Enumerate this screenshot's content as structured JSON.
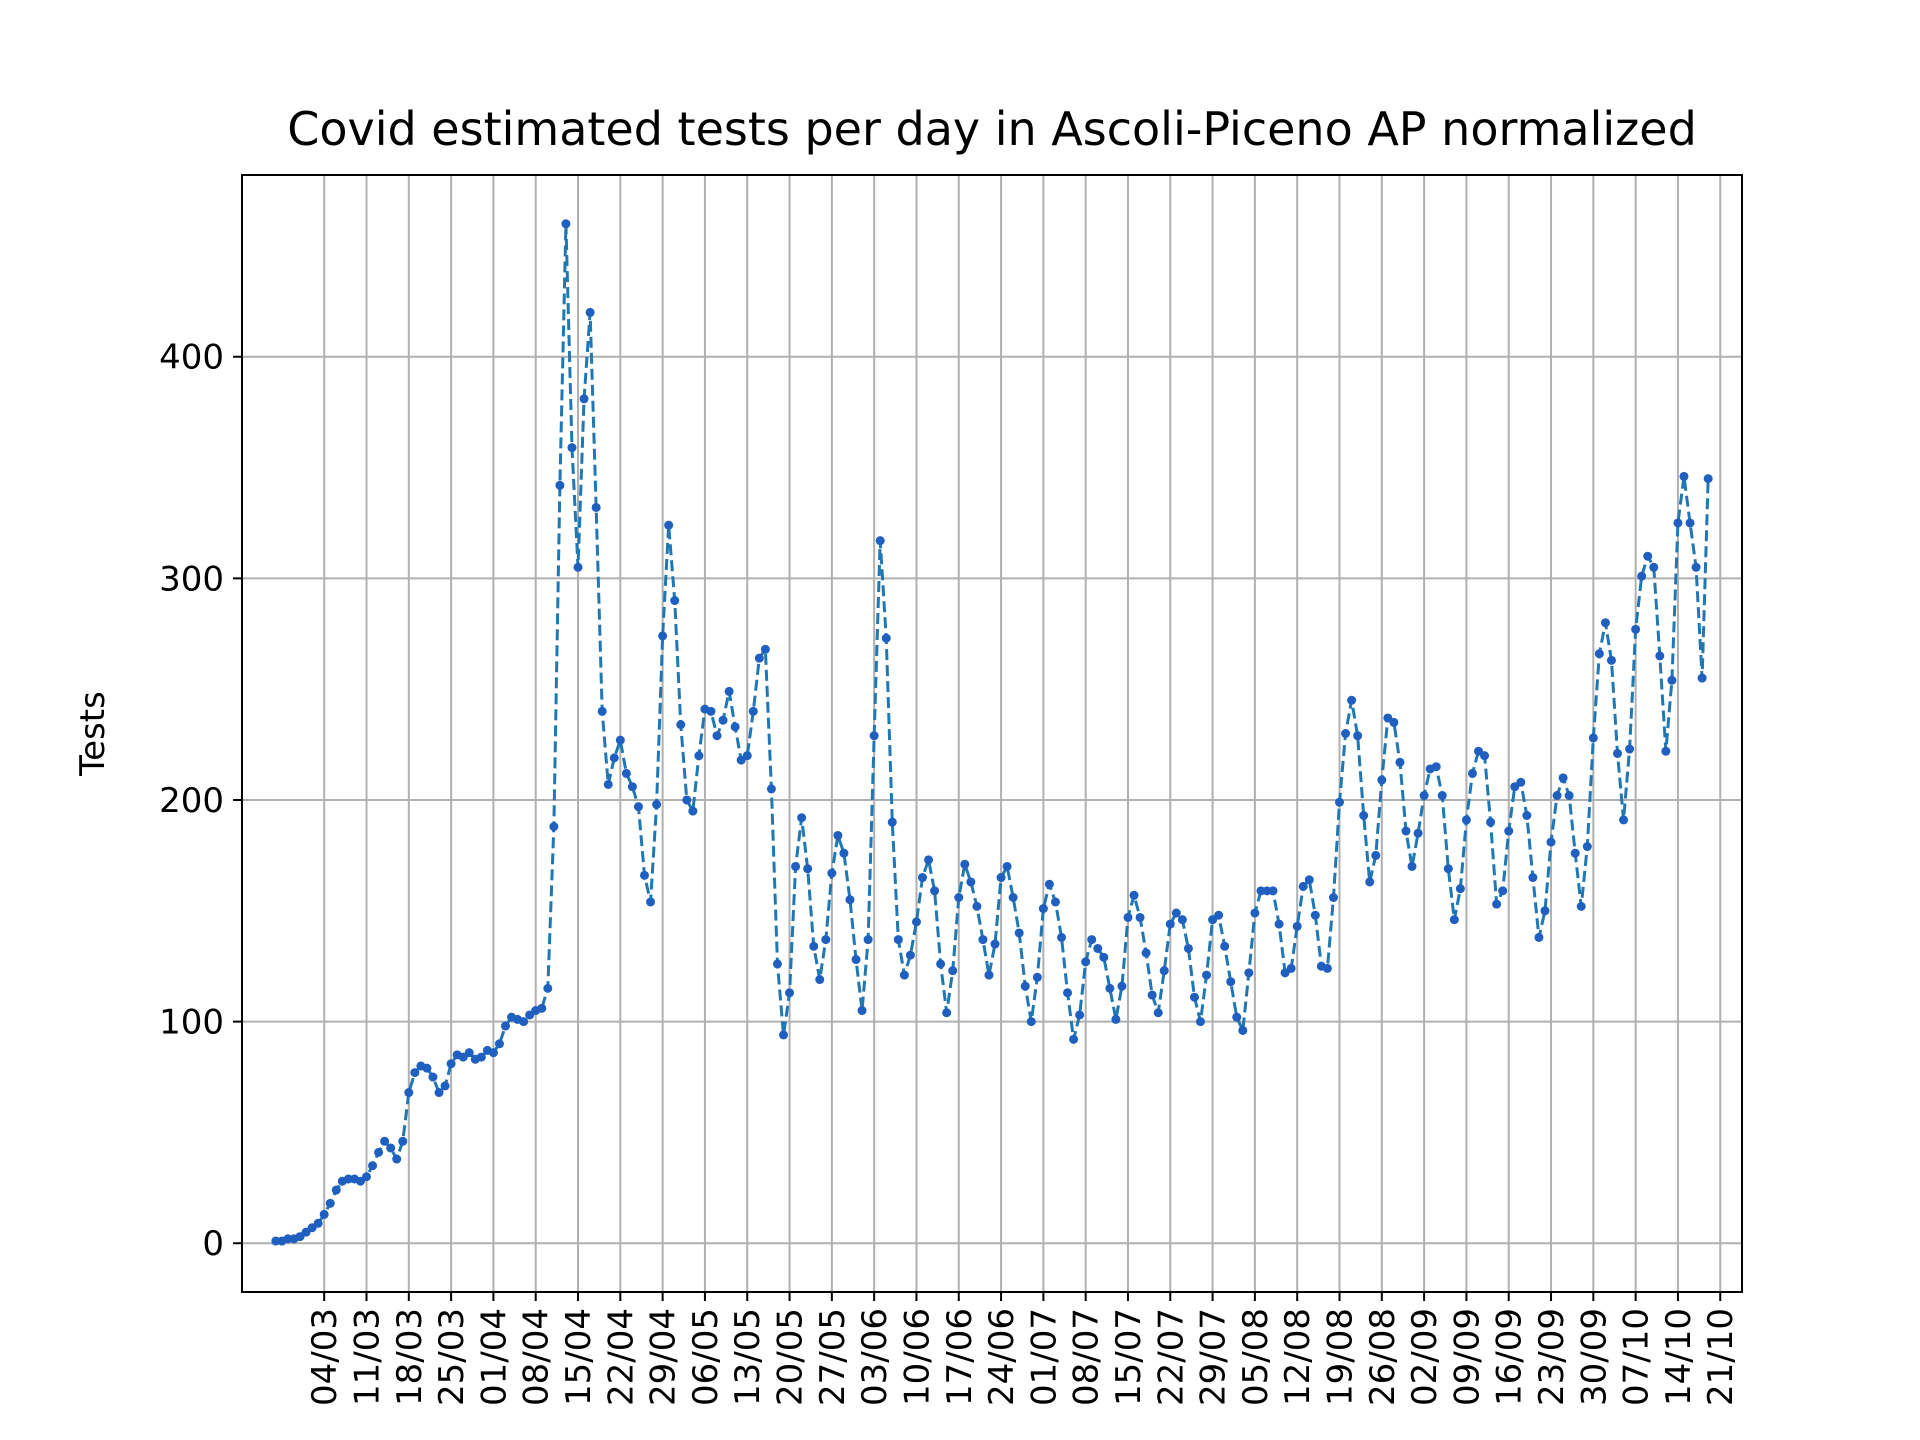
{
  "chart_data": {
    "type": "line",
    "title": "Covid estimated tests per day in Ascoli-Piceno AP normalized",
    "xlabel": "",
    "ylabel": "Tests",
    "ylim": [
      -22,
      482
    ],
    "grid": true,
    "line_style": "dashed",
    "marker": "dot",
    "colors": {
      "line": "#1f77b4",
      "marker": "#1f5fbf"
    },
    "x_ticks": [
      "04/03",
      "11/03",
      "18/03",
      "25/03",
      "01/04",
      "08/04",
      "15/04",
      "22/04",
      "29/04",
      "06/05",
      "13/05",
      "20/05",
      "27/05",
      "03/06",
      "10/06",
      "17/06",
      "24/06",
      "01/07",
      "08/07",
      "15/07",
      "22/07",
      "29/07",
      "05/08",
      "12/08",
      "19/08",
      "26/08",
      "02/09",
      "09/09",
      "16/09",
      "23/09",
      "30/09",
      "07/10",
      "14/10",
      "21/10"
    ],
    "y_ticks": [
      0,
      100,
      200,
      300,
      400
    ],
    "series": [
      {
        "start_date": "2020-02-25",
        "values": [
          1,
          1,
          2,
          2,
          3,
          5,
          7,
          9,
          13,
          18,
          24,
          28,
          29,
          29,
          28,
          30,
          35,
          41,
          46,
          43,
          38,
          46,
          68,
          77,
          80,
          79,
          75,
          68,
          71,
          81,
          85,
          84,
          86,
          83,
          84,
          87,
          86,
          90,
          98,
          102,
          101,
          100,
          103,
          105,
          106,
          115,
          188,
          342,
          460,
          359,
          305,
          381,
          420,
          332,
          240,
          207,
          219,
          227,
          212,
          206,
          197,
          166,
          154,
          198,
          274,
          324,
          290,
          234,
          200,
          195,
          220,
          241,
          240,
          229,
          236,
          249,
          233,
          218,
          220,
          240,
          264,
          268,
          205,
          126,
          94,
          113,
          170,
          192,
          169,
          134,
          119,
          137,
          167,
          184,
          176,
          155,
          128,
          105,
          137,
          229,
          317,
          273,
          190,
          137,
          121,
          130,
          145,
          165,
          173,
          159,
          126,
          104,
          123,
          156,
          171,
          163,
          152,
          137,
          121,
          135,
          165,
          170,
          156,
          140,
          116,
          100,
          120,
          151,
          162,
          154,
          138,
          113,
          92,
          103,
          127,
          137,
          133,
          129,
          115,
          101,
          116,
          147,
          157,
          147,
          131,
          112,
          104,
          123,
          144,
          149,
          146,
          133,
          111,
          100,
          121,
          146,
          148,
          134,
          118,
          102,
          96,
          122,
          149,
          159,
          159,
          159,
          144,
          122,
          124,
          143,
          161,
          164,
          148,
          125,
          124,
          156,
          199,
          230,
          245,
          229,
          193,
          163,
          175,
          209,
          237,
          235,
          217,
          186,
          170,
          185,
          202,
          214,
          215,
          202,
          169,
          146,
          160,
          191,
          212,
          222,
          220,
          190,
          153,
          159,
          186,
          206,
          208,
          193,
          165,
          138,
          150,
          181,
          202,
          210,
          202,
          176,
          152,
          179,
          228,
          266,
          280,
          263,
          221,
          191,
          223,
          277,
          301,
          310,
          305,
          265,
          222,
          254,
          325,
          346,
          325,
          305,
          255,
          345
        ]
      }
    ]
  }
}
